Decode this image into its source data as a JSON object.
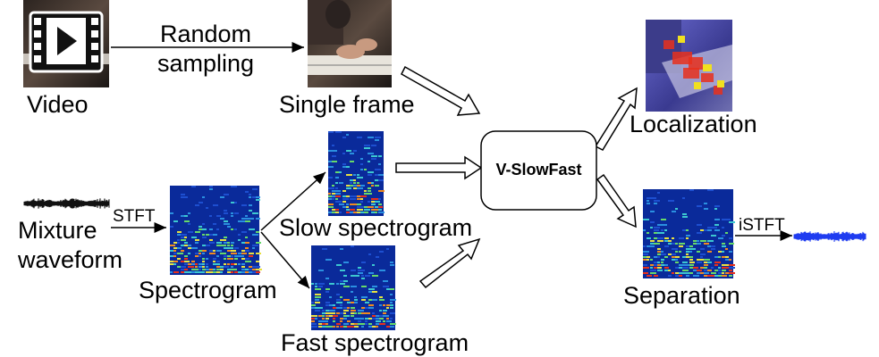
{
  "labels": {
    "random_sampling": [
      "Random",
      "sampling"
    ],
    "video": "Video",
    "single_frame": "Single frame",
    "mixture_waveform": [
      "Mixture",
      "waveform"
    ],
    "stft": "STFT",
    "spectrogram": "Spectrogram",
    "slow_spectrogram": "Slow spectrogram",
    "fast_spectrogram": "Fast spectrogram",
    "model": "V-SlowFast",
    "localization": "Localization",
    "separation": "Separation",
    "istft": "iSTFT"
  },
  "colors": {
    "spectrogram_bg": "#0a2a9a",
    "waveform_black": "#111111",
    "waveform_blue": "#1f3cf0",
    "heat_red": "#e8301c",
    "heat_yellow": "#f0e020",
    "localization_bg": "#5a5ab8"
  },
  "icons": {
    "video_clip": "film-play-icon"
  }
}
